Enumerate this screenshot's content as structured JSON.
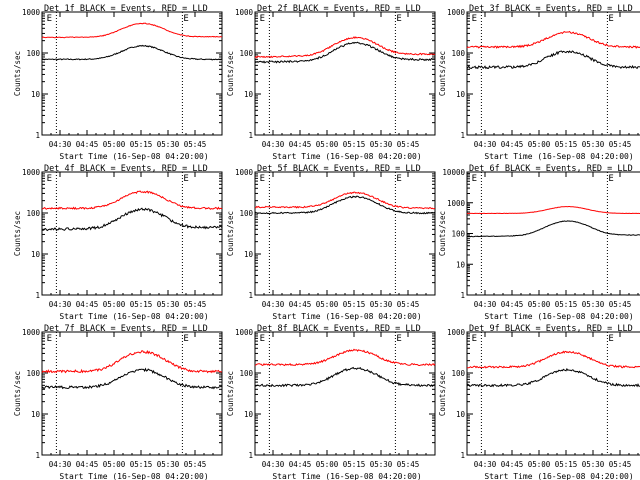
{
  "chart_data": [
    {
      "type": "line",
      "title": "Det 1f BLACK = Events, RED = LLD",
      "ylabel": "Counts/sec",
      "xlabel": "Start Time (16-Sep-08 04:20:00)",
      "ylim": [
        1,
        1000
      ],
      "yscale": "log",
      "x_ticks": [
        "04:30",
        "04:45",
        "05:00",
        "05:15",
        "05:30",
        "05:45"
      ],
      "x_minutes": [
        0,
        100
      ],
      "markers": [
        {
          "label": "E",
          "minute": 2
        },
        {
          "label": "E",
          "minute": 78
        }
      ],
      "dotted_lines_minutes": [
        8,
        78
      ],
      "series": [
        {
          "name": "Events",
          "color": "#000000",
          "base": 70,
          "peak": 150,
          "peak_minute": 56,
          "end": 70,
          "noise": 0.03
        },
        {
          "name": "LLD",
          "color": "#ff0000",
          "base": 240,
          "peak": 520,
          "peak_minute": 56,
          "end": 250,
          "noise": 0.02
        }
      ]
    },
    {
      "type": "line",
      "title": "Det 2f BLACK = Events, RED = LLD",
      "ylabel": "Counts/sec",
      "xlabel": "Start Time (16-Sep-08 04:20:00)",
      "ylim": [
        1,
        1000
      ],
      "yscale": "log",
      "x_ticks": [
        "04:30",
        "04:45",
        "05:00",
        "05:15",
        "05:30",
        "05:45"
      ],
      "x_minutes": [
        0,
        100
      ],
      "markers": [
        {
          "label": "E",
          "minute": 2
        },
        {
          "label": "E",
          "minute": 78
        }
      ],
      "dotted_lines_minutes": [
        8,
        78
      ],
      "series": [
        {
          "name": "Events",
          "color": "#000000",
          "base": 60,
          "peak": 170,
          "peak_minute": 56,
          "end": 70,
          "noise": 0.05
        },
        {
          "name": "LLD",
          "color": "#ff0000",
          "base": 80,
          "peak": 230,
          "peak_minute": 56,
          "end": 95,
          "noise": 0.04
        }
      ]
    },
    {
      "type": "line",
      "title": "Det 3f BLACK = Events, RED = LLD",
      "ylabel": "Counts/sec",
      "xlabel": "Start Time (16-Sep-08 04:20:00)",
      "ylim": [
        1,
        1000
      ],
      "yscale": "log",
      "x_ticks": [
        "04:30",
        "04:45",
        "05:00",
        "05:15",
        "05:30",
        "05:45"
      ],
      "x_minutes": [
        0,
        100
      ],
      "markers": [
        {
          "label": "E",
          "minute": 2
        },
        {
          "label": "E",
          "minute": 78
        }
      ],
      "dotted_lines_minutes": [
        8,
        78
      ],
      "series": [
        {
          "name": "Events",
          "color": "#000000",
          "base": 45,
          "peak": 110,
          "peak_minute": 56,
          "end": 45,
          "noise": 0.07
        },
        {
          "name": "LLD",
          "color": "#ff0000",
          "base": 140,
          "peak": 320,
          "peak_minute": 56,
          "end": 140,
          "noise": 0.05
        }
      ]
    },
    {
      "type": "line",
      "title": "Det 4f BLACK = Events, RED = LLD",
      "ylabel": "Counts/sec",
      "xlabel": "Start Time (16-Sep-08 04:20:00)",
      "ylim": [
        1,
        1000
      ],
      "yscale": "log",
      "x_ticks": [
        "04:30",
        "04:45",
        "05:00",
        "05:15",
        "05:30",
        "05:45"
      ],
      "x_minutes": [
        0,
        100
      ],
      "markers": [
        {
          "label": "E",
          "minute": 2
        },
        {
          "label": "E",
          "minute": 78
        }
      ],
      "dotted_lines_minutes": [
        8,
        78
      ],
      "series": [
        {
          "name": "Events",
          "color": "#000000",
          "base": 40,
          "peak": 120,
          "peak_minute": 56,
          "end": 45,
          "noise": 0.07
        },
        {
          "name": "LLD",
          "color": "#ff0000",
          "base": 130,
          "peak": 330,
          "peak_minute": 56,
          "end": 130,
          "noise": 0.05
        }
      ]
    },
    {
      "type": "line",
      "title": "Det 5f BLACK = Events, RED = LLD",
      "ylabel": "Counts/sec",
      "xlabel": "Start Time (16-Sep-08 04:20:00)",
      "ylim": [
        1,
        1000
      ],
      "yscale": "log",
      "x_ticks": [
        "04:30",
        "04:45",
        "05:00",
        "05:15",
        "05:30",
        "05:45"
      ],
      "x_minutes": [
        0,
        100
      ],
      "markers": [
        {
          "label": "E",
          "minute": 2
        },
        {
          "label": "E",
          "minute": 78
        }
      ],
      "dotted_lines_minutes": [
        8,
        78
      ],
      "series": [
        {
          "name": "Events",
          "color": "#000000",
          "base": 100,
          "peak": 250,
          "peak_minute": 56,
          "end": 100,
          "noise": 0.04
        },
        {
          "name": "LLD",
          "color": "#ff0000",
          "base": 140,
          "peak": 320,
          "peak_minute": 56,
          "end": 130,
          "noise": 0.04
        }
      ]
    },
    {
      "type": "line",
      "title": "Det 6f BLACK = Events, RED = LLD",
      "ylabel": "Counts/sec",
      "xlabel": "Start Time (16-Sep-08 04:20:00)",
      "ylim": [
        1,
        10000
      ],
      "yscale": "log",
      "x_ticks": [
        "04:30",
        "04:45",
        "05:00",
        "05:15",
        "05:30",
        "05:45"
      ],
      "x_minutes": [
        0,
        100
      ],
      "markers": [
        {
          "label": "E",
          "minute": 2
        },
        {
          "label": "E",
          "minute": 78
        }
      ],
      "dotted_lines_minutes": [
        8,
        78
      ],
      "series": [
        {
          "name": "Events",
          "color": "#000000",
          "base": 80,
          "peak": 250,
          "peak_minute": 56,
          "end": 90,
          "noise": 0.02
        },
        {
          "name": "LLD",
          "color": "#ff0000",
          "base": 450,
          "peak": 750,
          "peak_minute": 56,
          "end": 450,
          "noise": 0.01
        }
      ]
    },
    {
      "type": "line",
      "title": "Det 7f BLACK = Events, RED = LLD",
      "ylabel": "Counts/sec",
      "xlabel": "Start Time (16-Sep-08 04:20:00)",
      "ylim": [
        1,
        1000
      ],
      "yscale": "log",
      "x_ticks": [
        "04:30",
        "04:45",
        "05:00",
        "05:15",
        "05:30",
        "05:45"
      ],
      "x_minutes": [
        0,
        100
      ],
      "markers": [
        {
          "label": "E",
          "minute": 2
        },
        {
          "label": "E",
          "minute": 78
        }
      ],
      "dotted_lines_minutes": [
        8,
        78
      ],
      "series": [
        {
          "name": "Events",
          "color": "#000000",
          "base": 45,
          "peak": 120,
          "peak_minute": 56,
          "end": 45,
          "noise": 0.07
        },
        {
          "name": "LLD",
          "color": "#ff0000",
          "base": 110,
          "peak": 330,
          "peak_minute": 56,
          "end": 110,
          "noise": 0.07
        }
      ]
    },
    {
      "type": "line",
      "title": "Det 8f BLACK = Events, RED = LLD",
      "ylabel": "Counts/sec",
      "xlabel": "Start Time (16-Sep-08 04:20:00)",
      "ylim": [
        1,
        1000
      ],
      "yscale": "log",
      "x_ticks": [
        "04:30",
        "04:45",
        "05:00",
        "05:15",
        "05:30",
        "05:45"
      ],
      "x_minutes": [
        0,
        100
      ],
      "markers": [
        {
          "label": "E",
          "minute": 2
        },
        {
          "label": "E",
          "minute": 78
        }
      ],
      "dotted_lines_minutes": [
        8,
        78
      ],
      "series": [
        {
          "name": "Events",
          "color": "#000000",
          "base": 50,
          "peak": 130,
          "peak_minute": 56,
          "end": 50,
          "noise": 0.06
        },
        {
          "name": "LLD",
          "color": "#ff0000",
          "base": 160,
          "peak": 360,
          "peak_minute": 56,
          "end": 160,
          "noise": 0.05
        }
      ]
    },
    {
      "type": "line",
      "title": "Det 9f BLACK = Events, RED = LLD",
      "ylabel": "Counts/sec",
      "xlabel": "Start Time (16-Sep-08 04:20:00)",
      "ylim": [
        1,
        1000
      ],
      "yscale": "log",
      "x_ticks": [
        "04:30",
        "04:45",
        "05:00",
        "05:15",
        "05:30",
        "05:45"
      ],
      "x_minutes": [
        0,
        100
      ],
      "markers": [
        {
          "label": "E",
          "minute": 2
        },
        {
          "label": "E",
          "minute": 78
        }
      ],
      "dotted_lines_minutes": [
        8,
        78
      ],
      "series": [
        {
          "name": "Events",
          "color": "#000000",
          "base": 50,
          "peak": 120,
          "peak_minute": 56,
          "end": 50,
          "noise": 0.06
        },
        {
          "name": "LLD",
          "color": "#ff0000",
          "base": 140,
          "peak": 330,
          "peak_minute": 56,
          "end": 140,
          "noise": 0.05
        }
      ]
    }
  ]
}
